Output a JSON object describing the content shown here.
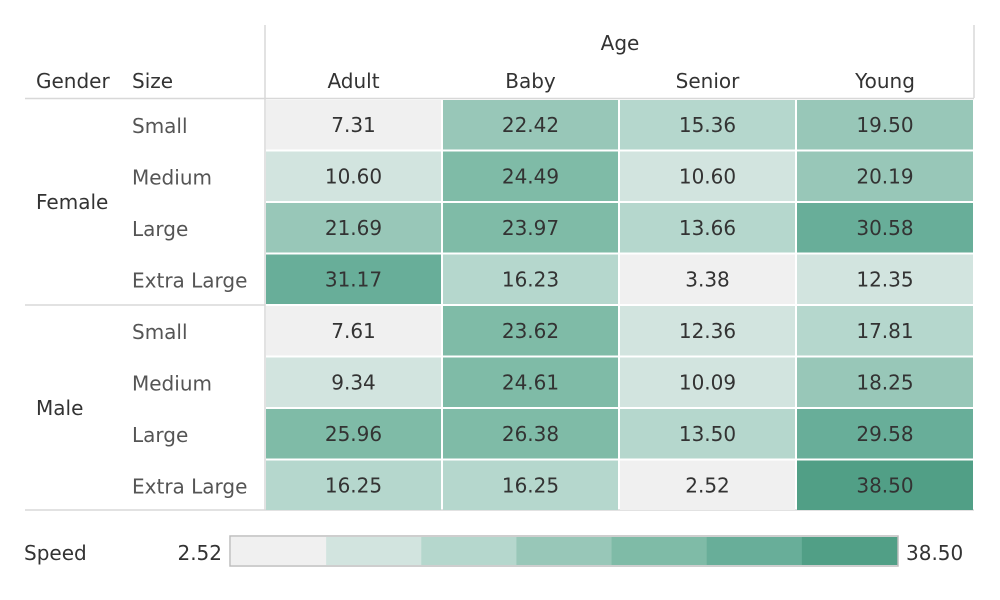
{
  "chart_data": {
    "type": "heatmap",
    "column_dimension": "Age",
    "columns": [
      "Adult",
      "Baby",
      "Senior",
      "Young"
    ],
    "row_headers": [
      "Gender",
      "Size"
    ],
    "groups": [
      {
        "gender": "Female",
        "rows": [
          {
            "size": "Small",
            "values": [
              7.31,
              22.42,
              15.36,
              19.5
            ]
          },
          {
            "size": "Medium",
            "values": [
              10.6,
              24.49,
              10.6,
              20.19
            ]
          },
          {
            "size": "Large",
            "values": [
              21.69,
              23.97,
              13.66,
              30.58
            ]
          },
          {
            "size": "Extra Large",
            "values": [
              31.17,
              16.23,
              3.38,
              12.35
            ]
          }
        ]
      },
      {
        "gender": "Male",
        "rows": [
          {
            "size": "Small",
            "values": [
              7.61,
              23.62,
              12.36,
              17.81
            ]
          },
          {
            "size": "Medium",
            "values": [
              9.34,
              24.61,
              10.09,
              18.25
            ]
          },
          {
            "size": "Large",
            "values": [
              25.96,
              26.38,
              13.5,
              29.58
            ]
          },
          {
            "size": "Extra Large",
            "values": [
              16.25,
              16.25,
              2.52,
              38.5
            ]
          }
        ]
      }
    ],
    "value_format": "0.00",
    "legend": {
      "title": "Speed",
      "min_label": "2.52",
      "max_label": "38.50",
      "min": 2.52,
      "max": 38.5,
      "steps": 7
    },
    "colors": [
      "#f0f0f0",
      "#d2e4df",
      "#b5d7cd",
      "#98c7b8",
      "#7fbba7",
      "#68ae99",
      "#519f86"
    ]
  }
}
